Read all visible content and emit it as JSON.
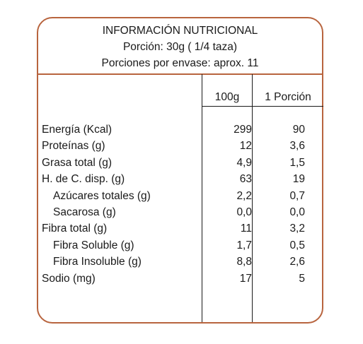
{
  "header": {
    "title": "INFORMACIÓN NUTRICIONAL",
    "portion": "Porción: 30g ( 1/4 taza)",
    "servings": "Porciones por envase:  aprox. 11"
  },
  "columns": {
    "per_100g": "100g",
    "per_portion": "1 Porción"
  },
  "rows": [
    {
      "name": "Energía (Kcal)",
      "indent": false,
      "per_100g": "299",
      "per_portion": "90"
    },
    {
      "name": "Proteínas (g)",
      "indent": false,
      "per_100g": "12",
      "per_portion": "3,6"
    },
    {
      "name": "Grasa total (g)",
      "indent": false,
      "per_100g": "4,9",
      "per_portion": "1,5"
    },
    {
      "name": "H. de C. disp. (g)",
      "indent": false,
      "per_100g": "63",
      "per_portion": "19"
    },
    {
      "name": "Azúcares totales (g)",
      "indent": true,
      "per_100g": "2,2",
      "per_portion": "0,7"
    },
    {
      "name": "Sacarosa (g)",
      "indent": true,
      "per_100g": "0,0",
      "per_portion": "0,0"
    },
    {
      "name": "Fibra total (g)",
      "indent": false,
      "per_100g": "11",
      "per_portion": "3,2"
    },
    {
      "name": "Fibra Soluble (g)",
      "indent": true,
      "per_100g": "1,7",
      "per_portion": "0,5"
    },
    {
      "name": "Fibra Insoluble (g)",
      "indent": true,
      "per_100g": "8,8",
      "per_portion": "2,6"
    },
    {
      "name": "Sodio (mg)",
      "indent": false,
      "per_100g": "17",
      "per_portion": "5"
    }
  ],
  "colors": {
    "border": "#b8643e",
    "text": "#1a1a1a"
  }
}
